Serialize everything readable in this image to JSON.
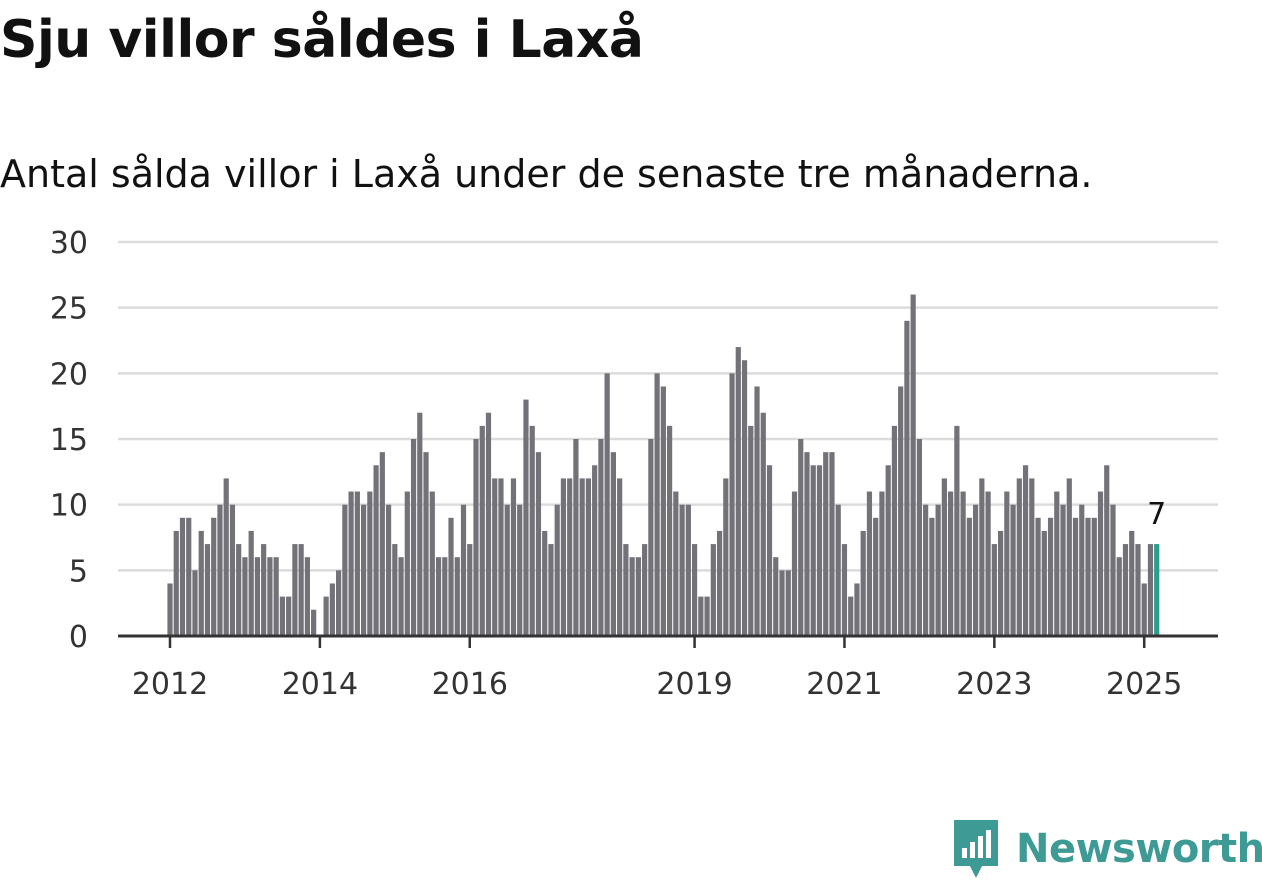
{
  "chart_data": {
    "type": "bar",
    "title": "Sju villor såldes i Laxå",
    "subtitle": "Antal sålda villor i Laxå under de senaste tre månaderna.",
    "ylim": [
      0,
      30
    ],
    "yticks": [
      0,
      5,
      10,
      15,
      20,
      25,
      30
    ],
    "xticks": [
      "2012",
      "2014",
      "2016",
      "2019",
      "2021",
      "2023",
      "2025"
    ],
    "grid": true,
    "start": "2012-01",
    "values": [
      4,
      8,
      9,
      9,
      5,
      8,
      7,
      9,
      10,
      12,
      10,
      7,
      6,
      8,
      6,
      7,
      6,
      6,
      3,
      3,
      7,
      7,
      6,
      2,
      0,
      3,
      4,
      5,
      10,
      11,
      11,
      10,
      11,
      13,
      14,
      10,
      7,
      6,
      11,
      15,
      17,
      14,
      11,
      6,
      6,
      9,
      6,
      10,
      7,
      15,
      16,
      17,
      12,
      12,
      10,
      12,
      10,
      18,
      16,
      14,
      8,
      7,
      10,
      12,
      12,
      15,
      12,
      12,
      13,
      15,
      20,
      14,
      12,
      7,
      6,
      6,
      7,
      15,
      20,
      19,
      16,
      11,
      10,
      10,
      7,
      3,
      3,
      7,
      8,
      12,
      20,
      22,
      21,
      16,
      19,
      17,
      13,
      6,
      5,
      5,
      11,
      15,
      14,
      13,
      13,
      14,
      14,
      10,
      7,
      3,
      4,
      8,
      11,
      9,
      11,
      13,
      16,
      19,
      24,
      26,
      15,
      10,
      9,
      10,
      12,
      11,
      16,
      11,
      9,
      10,
      12,
      11,
      7,
      8,
      11,
      10,
      12,
      13,
      12,
      9,
      8,
      9,
      11,
      10,
      12,
      9,
      10,
      9,
      9,
      11,
      13,
      10,
      6,
      7,
      8,
      7,
      4,
      7,
      7
    ],
    "highlight_index": 158,
    "highlight_label": "7",
    "colors": {
      "bar": "#737278",
      "highlight": "#2a9d8f",
      "grid": "#dcdcdc",
      "axis": "#333333"
    }
  },
  "brand": {
    "name": "Newsworthy",
    "color": "#3e9a94"
  }
}
